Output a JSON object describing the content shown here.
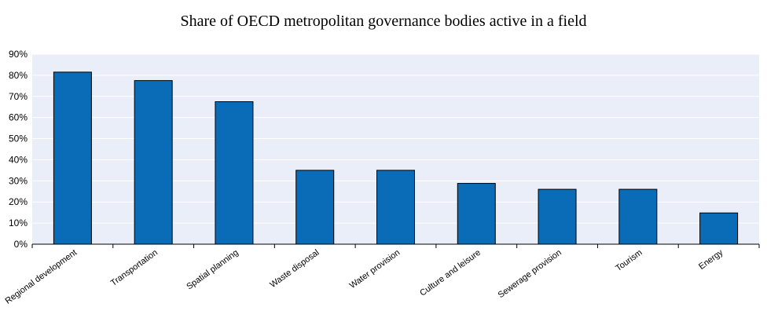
{
  "chart_data": {
    "type": "bar",
    "title": "Share of OECD metropolitan governance bodies active in a field",
    "xlabel": "",
    "ylabel": "",
    "categories": [
      "Regional development",
      "Transportation",
      "Spatial planning",
      "Waste disposal",
      "Water provision",
      "Culture and leisure",
      "Sewerage provision",
      "Tourism",
      "Energy"
    ],
    "values": [
      81.5,
      77.5,
      67.5,
      35,
      35,
      28.8,
      26,
      26,
      14.8
    ],
    "ylim": [
      0,
      90
    ],
    "yticks": [
      "0%",
      "10%",
      "20%",
      "30%",
      "40%",
      "50%",
      "60%",
      "70%",
      "80%",
      "90%"
    ],
    "grid": true,
    "colors": {
      "bar": "#0a6bb7",
      "plot_background": "#e9eef8",
      "grid": "#ffffff"
    }
  }
}
